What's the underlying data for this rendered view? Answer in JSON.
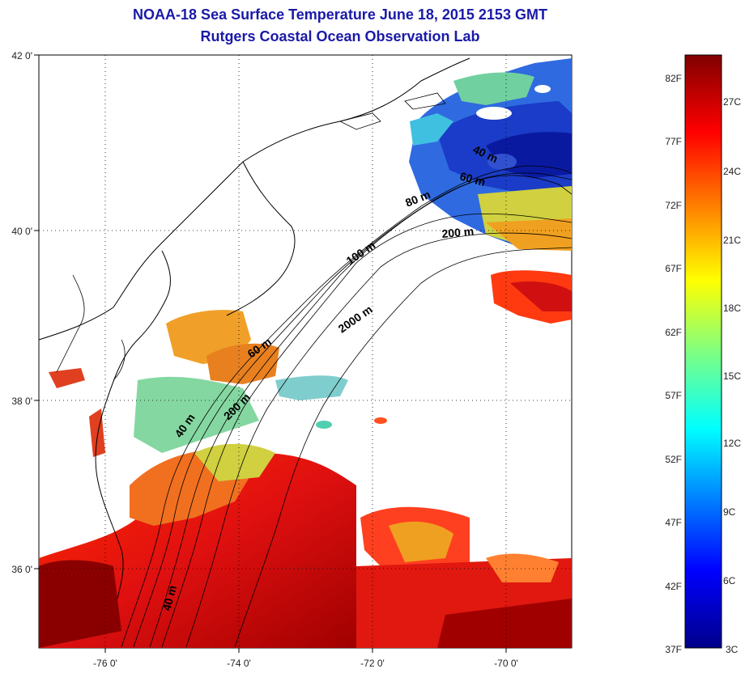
{
  "title": "NOAA-18 Sea Surface Temperature June 18, 2015 2153 GMT",
  "subtitle": "Rutgers Coastal Ocean Observation Lab",
  "map": {
    "lat_labels": [
      "42 0'",
      "40 0'",
      "38 0'",
      "36 0'"
    ],
    "lon_labels": [
      "-76 0'",
      "-74 0'",
      "-72 0'",
      "-70 0'"
    ],
    "depth_contour_labels": [
      "40 m",
      "60 m",
      "80 m",
      "200 m",
      "100 m",
      "2000 m",
      "60 m",
      "200 m",
      "40 m",
      "40 m"
    ]
  },
  "colorbar": {
    "fahrenheit_labels": [
      "82F",
      "77F",
      "72F",
      "67F",
      "62F",
      "57F",
      "52F",
      "47F",
      "42F",
      "37F"
    ],
    "celsius_labels": [
      "27C",
      "24C",
      "21C",
      "18C",
      "15C",
      "12C",
      "9C",
      "6C",
      "3C"
    ],
    "colors": [
      "#7f0000",
      "#ff0000",
      "#ff8000",
      "#ffd000",
      "#c0ff40",
      "#40ffc0",
      "#00c0ff",
      "#0060ff",
      "#0000c0",
      "#000080"
    ]
  }
}
